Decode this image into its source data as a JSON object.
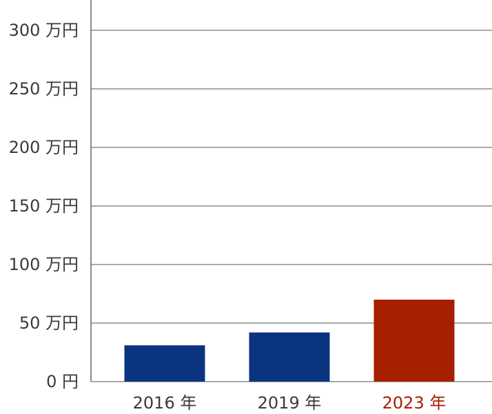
{
  "chart_data": {
    "type": "bar",
    "categories": [
      "2016 年",
      "2019 年",
      "2023 年"
    ],
    "values": [
      31,
      42,
      70
    ],
    "bar_colors": [
      "#0b3480",
      "#0b3480",
      "#a81f00"
    ],
    "category_label_colors": [
      "#3a3a3a",
      "#3a3a3a",
      "#a81f00"
    ],
    "ylim": [
      0,
      300
    ],
    "yticks": [
      {
        "value": 0,
        "label": "0 円"
      },
      {
        "value": 50,
        "label": "50 万円"
      },
      {
        "value": 100,
        "label": "100 万円"
      },
      {
        "value": 150,
        "label": "150 万円"
      },
      {
        "value": 200,
        "label": "200 万円"
      },
      {
        "value": 250,
        "label": "250 万円"
      },
      {
        "value": 300,
        "label": "300 万円"
      }
    ],
    "grid": true,
    "title": "",
    "xlabel": "",
    "ylabel": ""
  }
}
